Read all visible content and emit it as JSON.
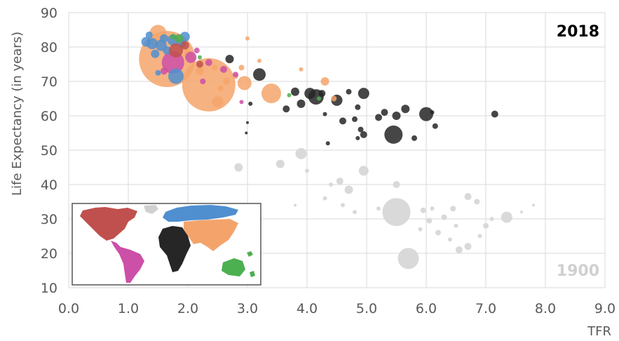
{
  "chart_data": {
    "type": "scatter",
    "xlabel": "TFR",
    "ylabel": "Life Expectancy (in years)",
    "xlim": [
      0,
      9
    ],
    "ylim": [
      10,
      90
    ],
    "x_ticks": [
      "0.0",
      "1.0",
      "2.0",
      "3.0",
      "4.0",
      "5.0",
      "6.0",
      "7.0",
      "8.0",
      "9.0"
    ],
    "y_ticks": [
      "10",
      "20",
      "30",
      "40",
      "50",
      "60",
      "70",
      "80",
      "90"
    ],
    "grid": true,
    "year_label": "2018",
    "ghost_year_label": "1900",
    "inset": "world map colored by region (legend)",
    "colors": {
      "africa": "#262626",
      "asia": "#f4a46b",
      "americas": "#cc4fa8",
      "europe": "#4f8fd0",
      "oceania": "#4caf50",
      "north_america_brown": "#c0504d",
      "ghost_1900": "#d9d9d9"
    },
    "series": [
      {
        "name": "1900",
        "color": "#d9d9d9",
        "points": [
          [
            2.85,
            45,
            6
          ],
          [
            3.55,
            46,
            6
          ],
          [
            3.9,
            49,
            8
          ],
          [
            4.55,
            41,
            5
          ],
          [
            4.7,
            38.5,
            6
          ],
          [
            4.95,
            44,
            7
          ],
          [
            5.5,
            40,
            5
          ],
          [
            5.5,
            32,
            20
          ],
          [
            5.7,
            18.5,
            15
          ],
          [
            6.05,
            29.5,
            4
          ],
          [
            6.3,
            30.5,
            4
          ],
          [
            6.45,
            33,
            4
          ],
          [
            6.7,
            36.5,
            5
          ],
          [
            6.85,
            35,
            4
          ],
          [
            6.55,
            21,
            5
          ],
          [
            6.7,
            22,
            5
          ],
          [
            7.35,
            30.5,
            8
          ],
          [
            7.0,
            28,
            4
          ],
          [
            5.95,
            32.5,
            4
          ],
          [
            6.2,
            26,
            4
          ],
          [
            5.2,
            33,
            3
          ],
          [
            4.8,
            32,
            3
          ],
          [
            4.6,
            34,
            3
          ],
          [
            4.4,
            40,
            3
          ],
          [
            4.3,
            36,
            3
          ],
          [
            7.8,
            34,
            2
          ],
          [
            7.6,
            32,
            2
          ],
          [
            6.5,
            28,
            3
          ],
          [
            6.9,
            25,
            3
          ],
          [
            6.4,
            24,
            3
          ],
          [
            5.9,
            27,
            3
          ],
          [
            6.1,
            33,
            3
          ],
          [
            7.1,
            30,
            3
          ],
          [
            3.8,
            34,
            2
          ],
          [
            4.0,
            44,
            3
          ]
        ]
      },
      {
        "name": "Africa",
        "color": "#262626",
        "points": [
          [
            7.15,
            60.5,
            5
          ],
          [
            6.0,
            60.5,
            10
          ],
          [
            6.15,
            57,
            4
          ],
          [
            5.45,
            54.5,
            13
          ],
          [
            5.8,
            53.5,
            4
          ],
          [
            5.5,
            60,
            6
          ],
          [
            5.65,
            62,
            6
          ],
          [
            5.2,
            59.5,
            5
          ],
          [
            5.3,
            61,
            5
          ],
          [
            4.95,
            66.5,
            8
          ],
          [
            4.85,
            62.5,
            4
          ],
          [
            4.7,
            67,
            4
          ],
          [
            4.8,
            59,
            4
          ],
          [
            4.6,
            58.5,
            5
          ],
          [
            4.9,
            56,
            4
          ],
          [
            4.85,
            53.5,
            3
          ],
          [
            4.95,
            54.5,
            5
          ],
          [
            4.5,
            64.5,
            8
          ],
          [
            4.25,
            66.5,
            5
          ],
          [
            4.05,
            66.5,
            8
          ],
          [
            4.15,
            65.5,
            11
          ],
          [
            3.9,
            63.5,
            6
          ],
          [
            3.8,
            67,
            6
          ],
          [
            3.65,
            62,
            5
          ],
          [
            3.2,
            72,
            9
          ],
          [
            3.05,
            63.5,
            3
          ],
          [
            3.0,
            58,
            2
          ],
          [
            2.98,
            55,
            2
          ],
          [
            2.7,
            76.5,
            6
          ],
          [
            4.35,
            52,
            3
          ],
          [
            4.3,
            60.5,
            3
          ],
          [
            6.1,
            61,
            3
          ]
        ]
      },
      {
        "name": "Asia",
        "color": "#f4a46b",
        "points": [
          [
            1.65,
            76.5,
            40
          ],
          [
            2.35,
            69,
            38
          ],
          [
            2.95,
            69.5,
            10
          ],
          [
            3.4,
            66.5,
            14
          ],
          [
            2.5,
            64,
            8
          ],
          [
            1.8,
            82,
            8
          ],
          [
            1.5,
            84,
            12
          ],
          [
            2.0,
            78,
            6
          ],
          [
            2.2,
            73,
            6
          ],
          [
            2.9,
            74,
            4
          ],
          [
            3.0,
            82.5,
            3
          ],
          [
            3.9,
            73.5,
            3
          ],
          [
            4.3,
            70,
            6
          ],
          [
            4.45,
            65,
            4
          ],
          [
            3.2,
            76,
            3
          ],
          [
            2.8,
            71.5,
            4
          ],
          [
            2.65,
            70,
            5
          ],
          [
            2.55,
            68,
            4
          ],
          [
            2.45,
            74,
            4
          ]
        ]
      },
      {
        "name": "Americas",
        "color": "#cc4fa8",
        "points": [
          [
            1.75,
            75.5,
            16
          ],
          [
            2.05,
            77,
            8
          ],
          [
            2.35,
            75.5,
            5
          ],
          [
            2.6,
            73.5,
            5
          ],
          [
            2.15,
            79,
            4
          ],
          [
            2.9,
            64,
            3
          ],
          [
            2.25,
            70,
            4
          ],
          [
            1.6,
            73,
            5
          ],
          [
            2.8,
            72,
            4
          ]
        ]
      },
      {
        "name": "Europe",
        "color": "#4f8fd0",
        "points": [
          [
            1.4,
            81,
            8
          ],
          [
            1.55,
            80.5,
            8
          ],
          [
            1.75,
            82,
            8
          ],
          [
            1.8,
            71.5,
            11
          ],
          [
            1.95,
            83,
            7
          ],
          [
            1.3,
            81.5,
            7
          ],
          [
            1.45,
            78,
            6
          ],
          [
            1.35,
            83.5,
            5
          ],
          [
            1.6,
            82.5,
            6
          ],
          [
            1.9,
            81,
            6
          ],
          [
            1.65,
            79,
            6
          ],
          [
            1.5,
            72.5,
            4
          ]
        ]
      },
      {
        "name": "Oceania",
        "color": "#4caf50",
        "points": [
          [
            1.85,
            82.5,
            6
          ],
          [
            1.75,
            83,
            4
          ],
          [
            3.7,
            66,
            3
          ],
          [
            4.2,
            65,
            3
          ],
          [
            2.2,
            77,
            3
          ]
        ]
      },
      {
        "name": "North America",
        "color": "#c0504d",
        "points": [
          [
            1.8,
            79,
            10
          ],
          [
            2.2,
            75,
            5
          ],
          [
            1.95,
            80.5,
            6
          ]
        ]
      }
    ]
  }
}
